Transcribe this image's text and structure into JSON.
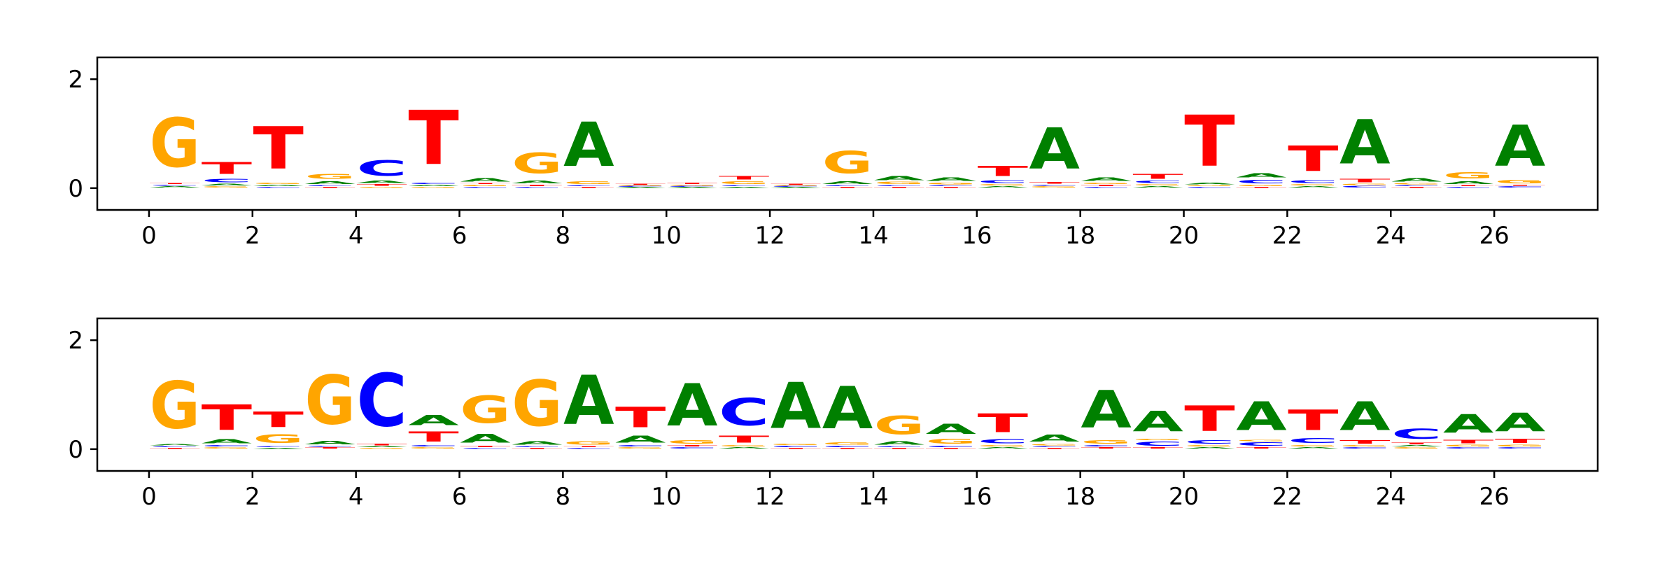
{
  "chart_data": [
    {
      "type": "sequence-logo",
      "xlim": [
        -1,
        28
      ],
      "ylim": [
        -0.4,
        2.4
      ],
      "xticks": [
        0,
        2,
        4,
        6,
        8,
        10,
        12,
        14,
        16,
        18,
        20,
        22,
        24,
        26
      ],
      "yticks": [
        0,
        2
      ],
      "colors": {
        "A": "#008000",
        "C": "#0000ff",
        "G": "#ffa500",
        "T": "#ff0000"
      },
      "positions": [
        {
          "pos": 0,
          "letters": [
            [
              "A",
              0.04
            ],
            [
              "C",
              0.03
            ],
            [
              "T",
              0.03
            ],
            [
              "G",
              1.45
            ]
          ]
        },
        {
          "pos": 1,
          "letters": [
            [
              "G",
              0.04
            ],
            [
              "A",
              0.05
            ],
            [
              "C",
              0.1
            ],
            [
              "T",
              0.35
            ]
          ]
        },
        {
          "pos": 2,
          "letters": [
            [
              "C",
              0.03
            ],
            [
              "A",
              0.04
            ],
            [
              "G",
              0.04
            ],
            [
              "T",
              1.25
            ]
          ]
        },
        {
          "pos": 3,
          "letters": [
            [
              "T",
              0.03
            ],
            [
              "C",
              0.03
            ],
            [
              "A",
              0.08
            ],
            [
              "G",
              0.15
            ]
          ]
        },
        {
          "pos": 4,
          "letters": [
            [
              "G",
              0.03
            ],
            [
              "T",
              0.05
            ],
            [
              "A",
              0.06
            ],
            [
              "C",
              0.45
            ]
          ]
        },
        {
          "pos": 5,
          "letters": [
            [
              "G",
              0.03
            ],
            [
              "A",
              0.04
            ],
            [
              "C",
              0.04
            ],
            [
              "T",
              1.6
            ]
          ]
        },
        {
          "pos": 6,
          "letters": [
            [
              "C",
              0.03
            ],
            [
              "G",
              0.04
            ],
            [
              "T",
              0.03
            ],
            [
              "A",
              0.1
            ]
          ]
        },
        {
          "pos": 7,
          "letters": [
            [
              "C",
              0.03
            ],
            [
              "T",
              0.04
            ],
            [
              "A",
              0.08
            ],
            [
              "G",
              0.6
            ]
          ]
        },
        {
          "pos": 8,
          "letters": [
            [
              "T",
              0.03
            ],
            [
              "C",
              0.03
            ],
            [
              "G",
              0.08
            ],
            [
              "A",
              1.3
            ]
          ]
        },
        {
          "pos": 9,
          "letters": [
            [
              "A",
              0.02
            ],
            [
              "C",
              0.02
            ],
            [
              "G",
              0.02
            ],
            [
              "T",
              0.02
            ]
          ]
        },
        {
          "pos": 10,
          "letters": [
            [
              "A",
              0.02
            ],
            [
              "C",
              0.02
            ],
            [
              "G",
              0.03
            ],
            [
              "T",
              0.04
            ]
          ]
        },
        {
          "pos": 11,
          "letters": [
            [
              "A",
              0.03
            ],
            [
              "C",
              0.03
            ],
            [
              "G",
              0.08
            ],
            [
              "T",
              0.1
            ]
          ]
        },
        {
          "pos": 12,
          "letters": [
            [
              "A",
              0.02
            ],
            [
              "C",
              0.02
            ],
            [
              "G",
              0.02
            ],
            [
              "T",
              0.02
            ]
          ]
        },
        {
          "pos": 13,
          "letters": [
            [
              "T",
              0.03
            ],
            [
              "C",
              0.03
            ],
            [
              "A",
              0.08
            ],
            [
              "G",
              0.65
            ]
          ]
        },
        {
          "pos": 14,
          "letters": [
            [
              "T",
              0.03
            ],
            [
              "C",
              0.03
            ],
            [
              "G",
              0.06
            ],
            [
              "A",
              0.12
            ]
          ]
        },
        {
          "pos": 15,
          "letters": [
            [
              "T",
              0.03
            ],
            [
              "C",
              0.03
            ],
            [
              "G",
              0.05
            ],
            [
              "A",
              0.1
            ]
          ]
        },
        {
          "pos": 16,
          "letters": [
            [
              "A",
              0.04
            ],
            [
              "G",
              0.04
            ],
            [
              "C",
              0.08
            ],
            [
              "T",
              0.3
            ]
          ]
        },
        {
          "pos": 17,
          "letters": [
            [
              "G",
              0.04
            ],
            [
              "C",
              0.03
            ],
            [
              "T",
              0.05
            ],
            [
              "A",
              1.2
            ]
          ]
        },
        {
          "pos": 18,
          "letters": [
            [
              "C",
              0.03
            ],
            [
              "T",
              0.04
            ],
            [
              "G",
              0.04
            ],
            [
              "A",
              0.1
            ]
          ]
        },
        {
          "pos": 19,
          "letters": [
            [
              "A",
              0.04
            ],
            [
              "G",
              0.04
            ],
            [
              "C",
              0.06
            ],
            [
              "T",
              0.15
            ]
          ]
        },
        {
          "pos": 20,
          "letters": [
            [
              "C",
              0.03
            ],
            [
              "G",
              0.03
            ],
            [
              "A",
              0.05
            ],
            [
              "T",
              1.5
            ]
          ]
        },
        {
          "pos": 21,
          "letters": [
            [
              "T",
              0.03
            ],
            [
              "G",
              0.04
            ],
            [
              "C",
              0.1
            ],
            [
              "A",
              0.12
            ]
          ]
        },
        {
          "pos": 22,
          "letters": [
            [
              "A",
              0.04
            ],
            [
              "G",
              0.04
            ],
            [
              "C",
              0.08
            ],
            [
              "T",
              0.75
            ]
          ]
        },
        {
          "pos": 23,
          "letters": [
            [
              "C",
              0.05
            ],
            [
              "G",
              0.04
            ],
            [
              "T",
              0.1
            ],
            [
              "A",
              1.3
            ]
          ]
        },
        {
          "pos": 24,
          "letters": [
            [
              "T",
              0.03
            ],
            [
              "C",
              0.03
            ],
            [
              "G",
              0.04
            ],
            [
              "A",
              0.1
            ]
          ]
        },
        {
          "pos": 25,
          "letters": [
            [
              "C",
              0.03
            ],
            [
              "T",
              0.03
            ],
            [
              "A",
              0.08
            ],
            [
              "G",
              0.18
            ]
          ]
        },
        {
          "pos": 26,
          "letters": [
            [
              "C",
              0.04
            ],
            [
              "T",
              0.03
            ],
            [
              "G",
              0.1
            ],
            [
              "A",
              1.2
            ]
          ]
        }
      ]
    },
    {
      "type": "sequence-logo",
      "xlim": [
        -1,
        28
      ],
      "ylim": [
        -0.4,
        2.4
      ],
      "xticks": [
        0,
        2,
        4,
        6,
        8,
        10,
        12,
        14,
        16,
        18,
        20,
        22,
        24,
        26
      ],
      "yticks": [
        0,
        2
      ],
      "colors": {
        "A": "#008000",
        "C": "#0000ff",
        "G": "#ffa500",
        "T": "#ff0000"
      },
      "positions": [
        {
          "pos": 0,
          "letters": [
            [
              "T",
              0.03
            ],
            [
              "C",
              0.03
            ],
            [
              "A",
              0.04
            ],
            [
              "G",
              1.4
            ]
          ]
        },
        {
          "pos": 1,
          "letters": [
            [
              "G",
              0.04
            ],
            [
              "C",
              0.04
            ],
            [
              "A",
              0.12
            ],
            [
              "T",
              0.75
            ]
          ]
        },
        {
          "pos": 2,
          "letters": [
            [
              "A",
              0.03
            ],
            [
              "C",
              0.03
            ],
            [
              "G",
              0.25
            ],
            [
              "T",
              0.45
            ]
          ]
        },
        {
          "pos": 3,
          "letters": [
            [
              "T",
              0.04
            ],
            [
              "C",
              0.03
            ],
            [
              "A",
              0.1
            ],
            [
              "G",
              1.45
            ]
          ]
        },
        {
          "pos": 4,
          "letters": [
            [
              "G",
              0.03
            ],
            [
              "A",
              0.03
            ],
            [
              "T",
              0.05
            ],
            [
              "C",
              1.55
            ]
          ]
        },
        {
          "pos": 5,
          "letters": [
            [
              "G",
              0.04
            ],
            [
              "C",
              0.04
            ],
            [
              "T",
              0.3
            ],
            [
              "A",
              0.3
            ]
          ]
        },
        {
          "pos": 6,
          "letters": [
            [
              "C",
              0.03
            ],
            [
              "T",
              0.04
            ],
            [
              "A",
              0.25
            ],
            [
              "G",
              0.8
            ]
          ]
        },
        {
          "pos": 7,
          "letters": [
            [
              "T",
              0.03
            ],
            [
              "C",
              0.03
            ],
            [
              "A",
              0.1
            ],
            [
              "G",
              1.35
            ]
          ]
        },
        {
          "pos": 8,
          "letters": [
            [
              "C",
              0.03
            ],
            [
              "T",
              0.03
            ],
            [
              "G",
              0.1
            ],
            [
              "A",
              1.45
            ]
          ]
        },
        {
          "pos": 9,
          "letters": [
            [
              "G",
              0.04
            ],
            [
              "C",
              0.04
            ],
            [
              "A",
              0.2
            ],
            [
              "T",
              0.6
            ]
          ]
        },
        {
          "pos": 10,
          "letters": [
            [
              "C",
              0.04
            ],
            [
              "T",
              0.04
            ],
            [
              "G",
              0.1
            ],
            [
              "A",
              1.25
            ]
          ]
        },
        {
          "pos": 11,
          "letters": [
            [
              "A",
              0.04
            ],
            [
              "G",
              0.04
            ],
            [
              "T",
              0.2
            ],
            [
              "C",
              0.8
            ]
          ]
        },
        {
          "pos": 12,
          "letters": [
            [
              "T",
              0.03
            ],
            [
              "C",
              0.04
            ],
            [
              "G",
              0.04
            ],
            [
              "A",
              1.35
            ]
          ]
        },
        {
          "pos": 13,
          "letters": [
            [
              "T",
              0.03
            ],
            [
              "C",
              0.04
            ],
            [
              "G",
              0.06
            ],
            [
              "A",
              1.25
            ]
          ]
        },
        {
          "pos": 14,
          "letters": [
            [
              "T",
              0.03
            ],
            [
              "C",
              0.03
            ],
            [
              "A",
              0.1
            ],
            [
              "G",
              0.55
            ]
          ]
        },
        {
          "pos": 15,
          "letters": [
            [
              "T",
              0.03
            ],
            [
              "C",
              0.04
            ],
            [
              "G",
              0.15
            ],
            [
              "A",
              0.3
            ]
          ]
        },
        {
          "pos": 16,
          "letters": [
            [
              "A",
              0.04
            ],
            [
              "G",
              0.04
            ],
            [
              "C",
              0.12
            ],
            [
              "T",
              0.55
            ]
          ]
        },
        {
          "pos": 17,
          "letters": [
            [
              "T",
              0.03
            ],
            [
              "C",
              0.03
            ],
            [
              "G",
              0.04
            ],
            [
              "A",
              0.2
            ]
          ]
        },
        {
          "pos": 18,
          "letters": [
            [
              "T",
              0.04
            ],
            [
              "C",
              0.04
            ],
            [
              "G",
              0.1
            ],
            [
              "A",
              1.1
            ]
          ]
        },
        {
          "pos": 19,
          "letters": [
            [
              "T",
              0.04
            ],
            [
              "C",
              0.12
            ],
            [
              "G",
              0.04
            ],
            [
              "A",
              0.6
            ]
          ]
        },
        {
          "pos": 20,
          "letters": [
            [
              "A",
              0.04
            ],
            [
              "G",
              0.04
            ],
            [
              "C",
              0.1
            ],
            [
              "T",
              0.75
            ]
          ]
        },
        {
          "pos": 21,
          "letters": [
            [
              "T",
              0.04
            ],
            [
              "C",
              0.1
            ],
            [
              "G",
              0.04
            ],
            [
              "A",
              0.85
            ]
          ]
        },
        {
          "pos": 22,
          "letters": [
            [
              "A",
              0.04
            ],
            [
              "G",
              0.04
            ],
            [
              "C",
              0.15
            ],
            [
              "T",
              0.6
            ]
          ]
        },
        {
          "pos": 23,
          "letters": [
            [
              "C",
              0.04
            ],
            [
              "G",
              0.04
            ],
            [
              "T",
              0.1
            ],
            [
              "A",
              0.85
            ]
          ]
        },
        {
          "pos": 24,
          "letters": [
            [
              "G",
              0.04
            ],
            [
              "A",
              0.04
            ],
            [
              "T",
              0.05
            ],
            [
              "C",
              0.3
            ]
          ]
        },
        {
          "pos": 25,
          "letters": [
            [
              "C",
              0.04
            ],
            [
              "G",
              0.05
            ],
            [
              "T",
              0.1
            ],
            [
              "A",
              0.55
            ]
          ]
        },
        {
          "pos": 26,
          "letters": [
            [
              "C",
              0.04
            ],
            [
              "G",
              0.05
            ],
            [
              "T",
              0.12
            ],
            [
              "A",
              0.55
            ]
          ]
        }
      ]
    }
  ]
}
